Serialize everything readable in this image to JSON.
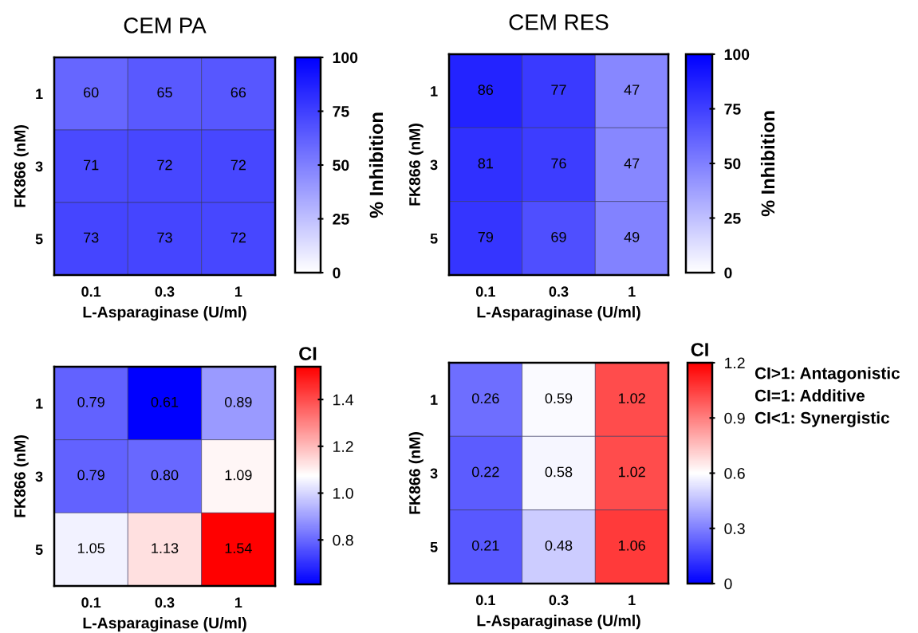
{
  "chart_data": [
    {
      "type": "heatmap",
      "title": "CEM PA",
      "xlabel": "L-Asparaginase (U/ml)",
      "ylabel": "FK866 (nM)",
      "clabel": "% Inhibition",
      "categories": [
        "0.1",
        "0.3",
        "1"
      ],
      "y_categories": [
        "1",
        "3",
        "5"
      ],
      "cells": [
        [
          60,
          65,
          66
        ],
        [
          71,
          72,
          72
        ],
        [
          73,
          73,
          72
        ]
      ],
      "data_labels": true,
      "clim": [
        0,
        100
      ],
      "cticks": [
        0,
        25,
        50,
        75,
        100
      ],
      "colors": [
        "#ffffff",
        "#0000ff"
      ]
    },
    {
      "type": "heatmap",
      "title": "CEM RES",
      "xlabel": "L-Asparaginase (U/ml)",
      "ylabel": "FK866 (nM)",
      "clabel": "% Inhibition",
      "categories": [
        "0.1",
        "0.3",
        "1"
      ],
      "y_categories": [
        "1",
        "3",
        "5"
      ],
      "cells": [
        [
          86,
          77,
          47
        ],
        [
          81,
          76,
          47
        ],
        [
          79,
          69,
          49
        ]
      ],
      "data_labels": true,
      "clim": [
        0,
        100
      ],
      "cticks": [
        0,
        25,
        50,
        75,
        100
      ],
      "colors": [
        "#ffffff",
        "#0000ff"
      ]
    },
    {
      "type": "heatmap",
      "xlabel": "L-Asparaginase (U/ml)",
      "ylabel": "FK866 (nM)",
      "clabel": "CI",
      "categories": [
        "0.1",
        "0.3",
        "1"
      ],
      "y_categories": [
        "1",
        "3",
        "5"
      ],
      "cells": [
        [
          0.79,
          0.61,
          0.89
        ],
        [
          0.79,
          0.8,
          1.09
        ],
        [
          1.05,
          1.13,
          1.54
        ]
      ],
      "cell_labels": [
        [
          "0.79",
          "0.61",
          "0.89"
        ],
        [
          "0.79",
          "0.80",
          "1.09"
        ],
        [
          "1.05",
          "1.13",
          "1.54"
        ]
      ],
      "data_labels": true,
      "clim": [
        0.61,
        1.54
      ],
      "cticks": [
        {
          "value": 0.8,
          "label": "0.8"
        },
        {
          "value": 1.0,
          "label": "1.0"
        },
        {
          "value": 1.2,
          "label": "1.2"
        },
        {
          "value": 1.4,
          "label": "1.4"
        }
      ],
      "colors": [
        "#0000ff",
        "#ffffff",
        "#ff0000"
      ]
    },
    {
      "type": "heatmap",
      "xlabel": "L-Asparaginase (U/ml)",
      "ylabel": "FK866 (nM)",
      "clabel": "CI",
      "categories": [
        "0.1",
        "0.3",
        "1"
      ],
      "y_categories": [
        "1",
        "3",
        "5"
      ],
      "cells": [
        [
          0.26,
          0.59,
          1.02
        ],
        [
          0.22,
          0.58,
          1.02
        ],
        [
          0.21,
          0.48,
          1.06
        ]
      ],
      "data_labels": true,
      "clim": [
        0,
        1.2
      ],
      "cticks": [
        0,
        0.3,
        0.6,
        0.9,
        1.2
      ],
      "colors": [
        "#0000ff",
        "#ffffff",
        "#ff0000"
      ],
      "annotations": [
        "CI>1: Antagonistic",
        "CI=1: Additive",
        "CI<1: Synergistic"
      ]
    }
  ]
}
